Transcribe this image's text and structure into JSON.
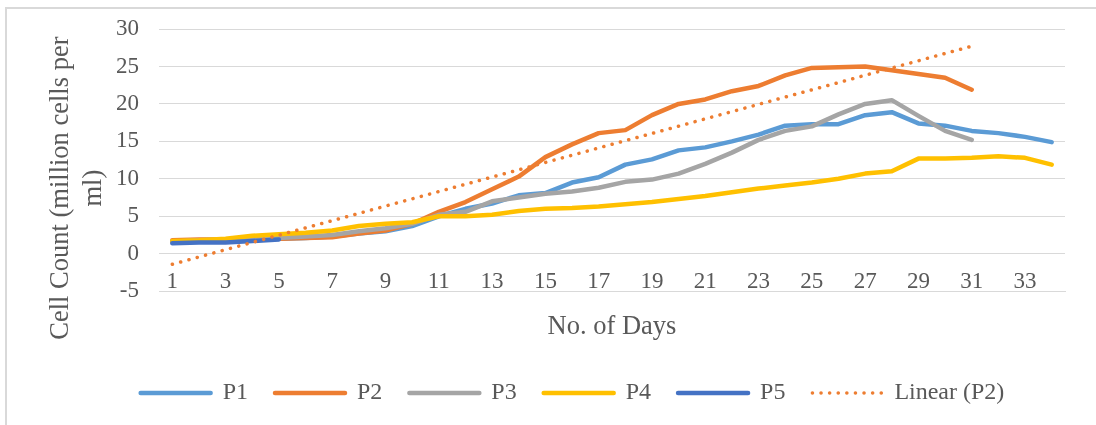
{
  "chart_data": {
    "type": "line",
    "xlabel": "No. of Days",
    "ylabel": "Cell Count (million cells per ml)",
    "x": [
      1,
      2,
      3,
      4,
      5,
      6,
      7,
      8,
      9,
      10,
      11,
      12,
      13,
      14,
      15,
      16,
      17,
      18,
      19,
      20,
      21,
      22,
      23,
      24,
      25,
      26,
      27,
      28,
      29,
      30,
      31,
      32,
      33,
      34
    ],
    "xlim": [
      0.5,
      34.5
    ],
    "xticks": [
      1,
      3,
      5,
      7,
      9,
      11,
      13,
      15,
      17,
      19,
      21,
      23,
      25,
      27,
      29,
      31,
      33
    ],
    "ylim": [
      -5,
      30
    ],
    "yticks": [
      -5,
      0,
      5,
      10,
      15,
      20,
      25,
      30
    ],
    "grid": "y",
    "legend": "bottom",
    "marker": "none",
    "line_style": "solid",
    "series": [
      {
        "name": "P1",
        "color": "#5b9bd5",
        "values": [
          1.6,
          1.7,
          1.8,
          1.9,
          2.0,
          2.1,
          2.3,
          2.7,
          3.0,
          3.7,
          5.0,
          6.0,
          6.7,
          7.8,
          8.1,
          9.5,
          10.2,
          11.9,
          12.6,
          13.8,
          14.2,
          15.0,
          15.9,
          17.1,
          17.3,
          17.3,
          18.5,
          18.9,
          17.4,
          17.1,
          16.4,
          16.1,
          15.6,
          14.9
        ]
      },
      {
        "name": "P2",
        "color": "#ed7d31",
        "values": [
          1.8,
          1.9,
          1.9,
          2.0,
          2.0,
          2.1,
          2.2,
          2.7,
          3.1,
          4.0,
          5.6,
          6.9,
          8.6,
          10.3,
          12.9,
          14.6,
          16.1,
          16.5,
          18.5,
          20.0,
          20.6,
          21.7,
          22.4,
          23.8,
          24.8,
          24.9,
          25.0,
          24.5,
          24.0,
          23.5,
          21.9,
          null,
          null,
          null
        ]
      },
      {
        "name": "P3",
        "color": "#a5a5a5",
        "values": [
          1.6,
          1.8,
          1.9,
          2.0,
          2.1,
          2.3,
          2.5,
          3.0,
          3.4,
          4.0,
          5.2,
          5.6,
          7.0,
          7.5,
          8.0,
          8.3,
          8.8,
          9.6,
          9.9,
          10.7,
          12.0,
          13.5,
          15.2,
          16.4,
          17.0,
          18.6,
          20.0,
          20.5,
          18.4,
          16.4,
          15.2,
          null,
          null,
          null
        ]
      },
      {
        "name": "P4",
        "color": "#ffc000",
        "values": [
          1.7,
          1.8,
          2.0,
          2.4,
          2.6,
          2.8,
          3.1,
          3.7,
          4.0,
          4.2,
          5.0,
          5.0,
          5.2,
          5.7,
          6.0,
          6.1,
          6.3,
          6.6,
          6.9,
          7.3,
          7.7,
          8.2,
          8.7,
          9.1,
          9.5,
          10.0,
          10.7,
          11.0,
          12.7,
          12.7,
          12.8,
          13.0,
          12.8,
          11.9
        ]
      },
      {
        "name": "P5",
        "color": "#4472c4",
        "values": [
          1.4,
          1.5,
          1.5,
          1.7,
          1.9,
          null,
          null,
          null,
          null,
          null,
          null,
          null,
          null,
          null,
          null,
          null,
          null,
          null,
          null,
          null,
          null,
          null,
          null,
          null,
          null,
          null,
          null,
          null,
          null,
          null,
          null,
          null,
          null,
          null
        ]
      },
      {
        "name": "Linear (P2)",
        "type": "line",
        "color": "#ed7d31",
        "line_style": "dotted",
        "x": [
          1,
          31
        ],
        "values": [
          -1.4,
          27.7
        ]
      }
    ]
  }
}
